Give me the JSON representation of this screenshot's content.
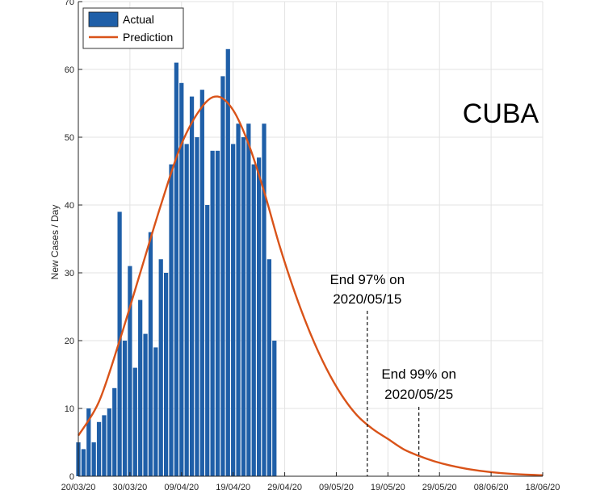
{
  "chart_data": {
    "type": "bar",
    "title": "",
    "country_label": "CUBA",
    "xlabel": "",
    "ylabel": "New Cases / Day",
    "ylim": [
      0,
      70
    ],
    "yticks": [
      0,
      10,
      20,
      30,
      40,
      50,
      60,
      70
    ],
    "grid": true,
    "legend_position": "top-left",
    "x_tick_labels": [
      "20/03/20",
      "30/03/20",
      "09/04/20",
      "19/04/20",
      "29/04/20",
      "09/05/20",
      "19/05/20",
      "29/05/20",
      "08/06/20",
      "18/06/20"
    ],
    "x_day_range": [
      0,
      90
    ],
    "series": [
      {
        "name": "Actual",
        "type": "bar",
        "color": "#1f5fa8",
        "start_date": "20/03/20",
        "values": [
          5,
          4,
          10,
          5,
          8,
          9,
          10,
          13,
          39,
          20,
          31,
          16,
          26,
          21,
          36,
          19,
          32,
          30,
          46,
          61,
          58,
          49,
          56,
          50,
          57,
          40,
          48,
          48,
          59,
          63,
          49,
          52,
          50,
          52,
          46,
          47,
          52,
          32,
          20
        ]
      },
      {
        "name": "Prediction",
        "type": "line",
        "color": "#d95319",
        "points": [
          [
            0,
            6
          ],
          [
            4,
            11
          ],
          [
            8,
            20
          ],
          [
            12,
            30
          ],
          [
            16,
            40
          ],
          [
            20,
            49
          ],
          [
            24,
            54.5
          ],
          [
            27,
            56
          ],
          [
            30,
            54
          ],
          [
            33,
            49
          ],
          [
            36,
            42
          ],
          [
            39,
            34
          ],
          [
            42,
            27
          ],
          [
            45,
            21
          ],
          [
            48,
            16
          ],
          [
            51,
            12
          ],
          [
            54,
            9
          ],
          [
            57,
            7
          ],
          [
            60,
            5.5
          ],
          [
            63,
            4
          ],
          [
            66,
            3
          ],
          [
            69,
            2.2
          ],
          [
            72,
            1.6
          ],
          [
            76,
            1
          ],
          [
            80,
            0.6
          ],
          [
            85,
            0.3
          ],
          [
            90,
            0.15
          ]
        ]
      }
    ],
    "annotations": [
      {
        "line1": "End 97% on",
        "line2": "2020/05/15",
        "x_day": 56
      },
      {
        "line1": "End 99% on",
        "line2": "2020/05/25",
        "x_day": 66
      }
    ]
  }
}
